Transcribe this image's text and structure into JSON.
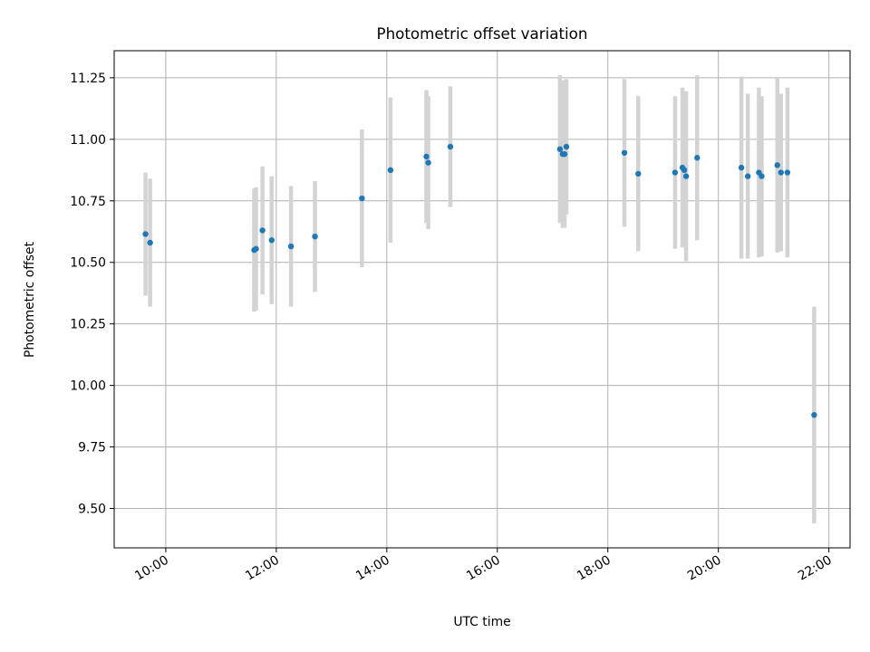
{
  "chart_data": {
    "type": "scatter",
    "title": "Photometric offset variation",
    "xlabel": "UTC time",
    "ylabel": "Photometric offset",
    "xlim": [
      "09:04",
      "22:23"
    ],
    "ylim": [
      9.34,
      11.36
    ],
    "x_ticks": [
      "10:00",
      "12:00",
      "14:00",
      "16:00",
      "18:00",
      "20:00",
      "22:00"
    ],
    "y_ticks": [
      "9.50",
      "9.75",
      "10.00",
      "10.25",
      "10.50",
      "10.75",
      "11.00",
      "11.25"
    ],
    "grid": true,
    "colors": {
      "point": "#1f77b4",
      "errorbar": "#d3d3d3",
      "grid": "#b0b0b0"
    },
    "points": [
      {
        "x": "09:38",
        "y": 10.615,
        "yerr": 0.25
      },
      {
        "x": "09:43",
        "y": 10.58,
        "yerr": 0.26
      },
      {
        "x": "11:36",
        "y": 10.55,
        "yerr": 0.25
      },
      {
        "x": "11:38",
        "y": 10.555,
        "yerr": 0.25
      },
      {
        "x": "11:45",
        "y": 10.63,
        "yerr": 0.26
      },
      {
        "x": "11:55",
        "y": 10.59,
        "yerr": 0.26
      },
      {
        "x": "12:16",
        "y": 10.565,
        "yerr": 0.245
      },
      {
        "x": "12:42",
        "y": 10.605,
        "yerr": 0.225
      },
      {
        "x": "13:33",
        "y": 10.76,
        "yerr": 0.28
      },
      {
        "x": "14:04",
        "y": 10.875,
        "yerr": 0.295
      },
      {
        "x": "14:43",
        "y": 10.93,
        "yerr": 0.27
      },
      {
        "x": "14:45",
        "y": 10.905,
        "yerr": 0.27
      },
      {
        "x": "15:09",
        "y": 10.97,
        "yerr": 0.245
      },
      {
        "x": "17:08",
        "y": 10.96,
        "yerr": 0.3
      },
      {
        "x": "17:11",
        "y": 10.94,
        "yerr": 0.3
      },
      {
        "x": "17:13",
        "y": 10.94,
        "yerr": 0.3
      },
      {
        "x": "17:15",
        "y": 10.97,
        "yerr": 0.275
      },
      {
        "x": "18:18",
        "y": 10.945,
        "yerr": 0.3
      },
      {
        "x": "18:33",
        "y": 10.86,
        "yerr": 0.315
      },
      {
        "x": "19:13",
        "y": 10.865,
        "yerr": 0.31
      },
      {
        "x": "19:21",
        "y": 10.885,
        "yerr": 0.325
      },
      {
        "x": "19:23",
        "y": 10.875,
        "yerr": 0.305
      },
      {
        "x": "19:25",
        "y": 10.85,
        "yerr": 0.345
      },
      {
        "x": "19:37",
        "y": 10.925,
        "yerr": 0.335
      },
      {
        "x": "20:25",
        "y": 10.885,
        "yerr": 0.37
      },
      {
        "x": "20:32",
        "y": 10.85,
        "yerr": 0.335
      },
      {
        "x": "20:44",
        "y": 10.865,
        "yerr": 0.345
      },
      {
        "x": "20:47",
        "y": 10.85,
        "yerr": 0.325
      },
      {
        "x": "21:04",
        "y": 10.895,
        "yerr": 0.355
      },
      {
        "x": "21:08",
        "y": 10.865,
        "yerr": 0.32
      },
      {
        "x": "21:15",
        "y": 10.865,
        "yerr": 0.345
      },
      {
        "x": "21:44",
        "y": 9.88,
        "yerr": 0.44
      }
    ]
  }
}
